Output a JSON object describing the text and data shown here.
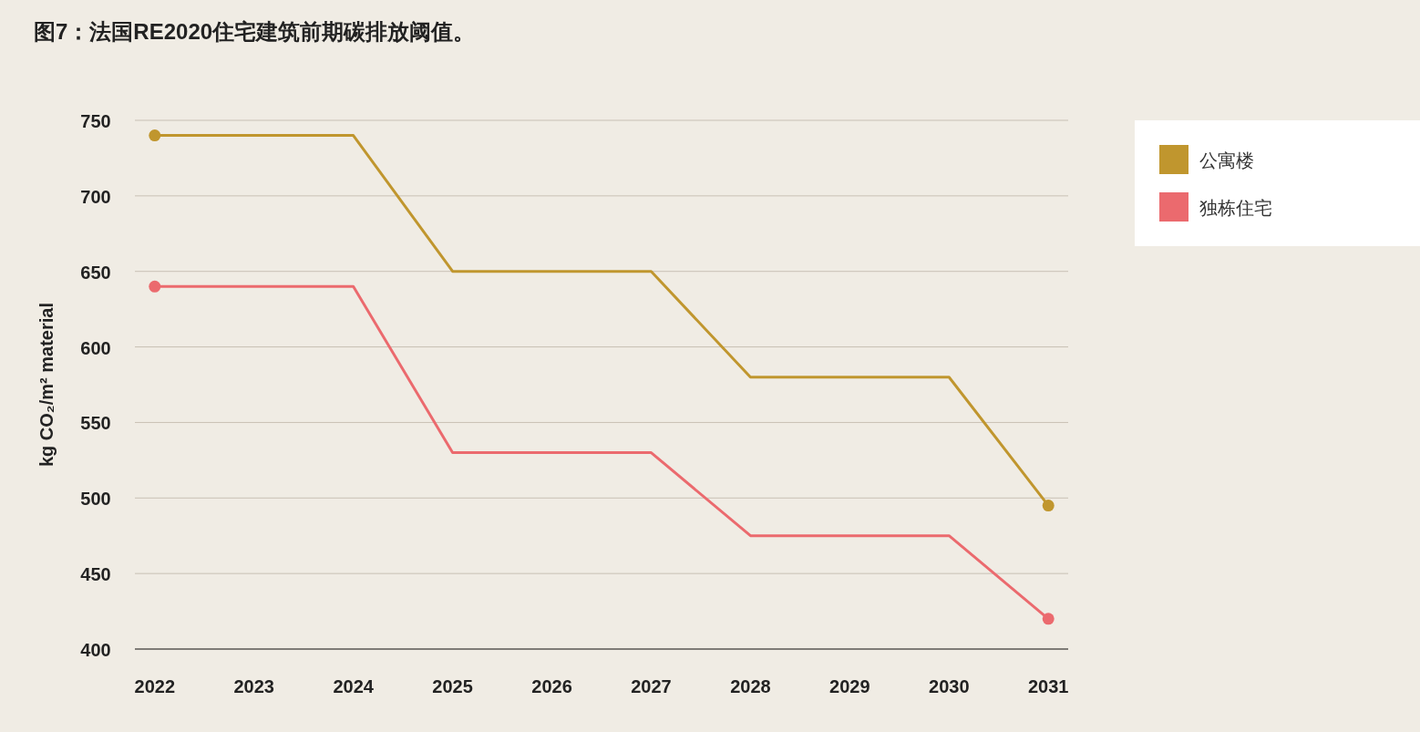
{
  "chart_data": {
    "type": "line",
    "title": "图7：法国RE2020住宅建筑前期碳排放阈值。",
    "ylabel": "kg CO₂/m² material",
    "series": [
      {
        "name": "公寓楼",
        "color": "#c0962e",
        "x": [
          2022,
          2024,
          2025,
          2027,
          2028,
          2030,
          2031
        ],
        "values": [
          740,
          740,
          650,
          650,
          580,
          580,
          495
        ]
      },
      {
        "name": "独栋住宅",
        "color": "#eb6a6e",
        "x": [
          2022,
          2024,
          2025,
          2027,
          2028,
          2030,
          2031
        ],
        "values": [
          640,
          640,
          530,
          530,
          475,
          475,
          420
        ]
      },
      {
        "type": "scatter",
        "marker": "circle",
        "color": "#c0962e",
        "x": [
          2022,
          2031
        ],
        "values": [
          740,
          495
        ]
      },
      {
        "type": "scatter",
        "marker": "circle",
        "color": "#eb6a6e",
        "x": [
          2022,
          2031
        ],
        "values": [
          640,
          420
        ]
      }
    ],
    "xlim": [
      2021.8,
      2031.2
    ],
    "xticks": [
      2022,
      2023,
      2024,
      2025,
      2026,
      2027,
      2028,
      2029,
      2030,
      2031
    ],
    "ylim": [
      400,
      750
    ],
    "yticks": [
      400,
      450,
      500,
      550,
      600,
      650,
      700,
      750
    ],
    "grid": "y",
    "legend": "top right",
    "line_style": "solid"
  }
}
